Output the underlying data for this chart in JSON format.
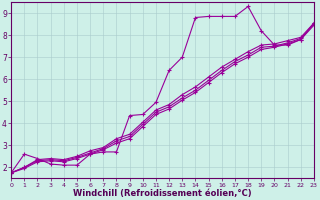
{
  "xlabel": "Windchill (Refroidissement éolien,°C)",
  "xlim": [
    0,
    23
  ],
  "ylim": [
    1.5,
    9.5
  ],
  "yticks": [
    2,
    3,
    4,
    5,
    6,
    7,
    8,
    9
  ],
  "xticks": [
    0,
    1,
    2,
    3,
    4,
    5,
    6,
    7,
    8,
    9,
    10,
    11,
    12,
    13,
    14,
    15,
    16,
    17,
    18,
    19,
    20,
    21,
    22,
    23
  ],
  "bg_color": "#cef0e8",
  "grid_color": "#aacccc",
  "line_color": "#990099",
  "line_width": 0.8,
  "marker_size": 3.5,
  "series1": [
    [
      0,
      1.75
    ],
    [
      1,
      2.6
    ],
    [
      2,
      2.4
    ],
    [
      3,
      2.15
    ],
    [
      4,
      2.1
    ],
    [
      5,
      2.1
    ],
    [
      6,
      2.6
    ],
    [
      7,
      2.7
    ],
    [
      8,
      2.7
    ],
    [
      9,
      4.35
    ],
    [
      10,
      4.4
    ],
    [
      11,
      4.95
    ],
    [
      12,
      6.4
    ],
    [
      13,
      7.0
    ],
    [
      14,
      8.8
    ],
    [
      15,
      8.85
    ],
    [
      16,
      8.85
    ],
    [
      17,
      8.85
    ],
    [
      18,
      9.3
    ],
    [
      19,
      8.2
    ],
    [
      20,
      7.55
    ],
    [
      21,
      7.55
    ],
    [
      22,
      7.8
    ],
    [
      23,
      8.55
    ]
  ],
  "series2": [
    [
      0,
      1.75
    ],
    [
      1,
      2.0
    ],
    [
      2,
      2.35
    ],
    [
      3,
      2.4
    ],
    [
      4,
      2.35
    ],
    [
      5,
      2.5
    ],
    [
      6,
      2.75
    ],
    [
      7,
      2.9
    ],
    [
      8,
      3.3
    ],
    [
      9,
      3.5
    ],
    [
      10,
      4.05
    ],
    [
      11,
      4.6
    ],
    [
      12,
      4.85
    ],
    [
      13,
      5.3
    ],
    [
      14,
      5.65
    ],
    [
      15,
      6.1
    ],
    [
      16,
      6.55
    ],
    [
      17,
      6.9
    ],
    [
      18,
      7.25
    ],
    [
      19,
      7.55
    ],
    [
      20,
      7.6
    ],
    [
      21,
      7.75
    ],
    [
      22,
      7.9
    ],
    [
      23,
      8.55
    ]
  ],
  "series3": [
    [
      0,
      1.75
    ],
    [
      1,
      2.0
    ],
    [
      2,
      2.3
    ],
    [
      3,
      2.35
    ],
    [
      4,
      2.3
    ],
    [
      5,
      2.45
    ],
    [
      6,
      2.65
    ],
    [
      7,
      2.85
    ],
    [
      8,
      3.2
    ],
    [
      9,
      3.4
    ],
    [
      10,
      3.95
    ],
    [
      11,
      4.5
    ],
    [
      12,
      4.75
    ],
    [
      13,
      5.15
    ],
    [
      14,
      5.5
    ],
    [
      15,
      5.95
    ],
    [
      16,
      6.4
    ],
    [
      17,
      6.8
    ],
    [
      18,
      7.1
    ],
    [
      19,
      7.45
    ],
    [
      20,
      7.5
    ],
    [
      21,
      7.65
    ],
    [
      22,
      7.85
    ],
    [
      23,
      8.5
    ]
  ],
  "series4": [
    [
      0,
      1.75
    ],
    [
      1,
      1.95
    ],
    [
      2,
      2.25
    ],
    [
      3,
      2.3
    ],
    [
      4,
      2.25
    ],
    [
      5,
      2.4
    ],
    [
      6,
      2.6
    ],
    [
      7,
      2.8
    ],
    [
      8,
      3.1
    ],
    [
      9,
      3.3
    ],
    [
      10,
      3.85
    ],
    [
      11,
      4.4
    ],
    [
      12,
      4.65
    ],
    [
      13,
      5.05
    ],
    [
      14,
      5.4
    ],
    [
      15,
      5.85
    ],
    [
      16,
      6.3
    ],
    [
      17,
      6.7
    ],
    [
      18,
      7.0
    ],
    [
      19,
      7.35
    ],
    [
      20,
      7.45
    ],
    [
      21,
      7.6
    ],
    [
      22,
      7.8
    ],
    [
      23,
      8.45
    ]
  ]
}
